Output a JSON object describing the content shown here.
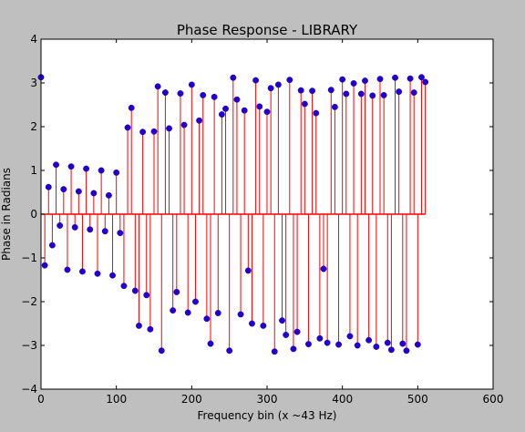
{
  "figure": {
    "background": "#bfbfbf"
  },
  "chart_data": {
    "type": "scatter",
    "style": "stem",
    "title": "Phase Response - LIBRARY",
    "xlabel": "Frequency bin (x ~43 Hz)",
    "ylabel": "Phase in Radians",
    "xlim": [
      0,
      600
    ],
    "ylim": [
      -4,
      4
    ],
    "xticks": [
      0,
      100,
      200,
      300,
      400,
      500,
      600
    ],
    "yticks": [
      -4,
      -3,
      -2,
      -1,
      0,
      1,
      2,
      3,
      4
    ],
    "grid": false,
    "legend": false,
    "colors": {
      "stem": "#ff0000",
      "marker": "#2200cc",
      "axes_bg": "#ffffff"
    },
    "series": [
      {
        "x": [
          0,
          5,
          10,
          15,
          20,
          25,
          30,
          35,
          40,
          45,
          50,
          55,
          60,
          65,
          70,
          75,
          80,
          85,
          90,
          95,
          100,
          105,
          110,
          115,
          120,
          125,
          130,
          135,
          140,
          145,
          150,
          155,
          160,
          165,
          170,
          175,
          180,
          185,
          190,
          195,
          200,
          205,
          210,
          215,
          220,
          225,
          230,
          235,
          240,
          245,
          250,
          255,
          260,
          265,
          270,
          275,
          280,
          285,
          290,
          295,
          300,
          305,
          310,
          315,
          320,
          325,
          330,
          335,
          340,
          345,
          350,
          355,
          360,
          365,
          370,
          375,
          380,
          385,
          390,
          395,
          400,
          405,
          410,
          415,
          420,
          425,
          430,
          435,
          440,
          445,
          450,
          455,
          460,
          465,
          470,
          475,
          480,
          485,
          490,
          495,
          500,
          505,
          510
        ],
        "y": [
          3.13,
          -1.17,
          0.62,
          -0.71,
          1.13,
          -0.26,
          0.57,
          -1.27,
          1.09,
          -0.3,
          0.52,
          -1.31,
          1.04,
          -0.35,
          0.48,
          -1.36,
          1.0,
          -0.39,
          0.43,
          -1.4,
          0.95,
          -0.43,
          -1.64,
          1.98,
          2.43,
          -1.75,
          -2.55,
          1.88,
          -1.85,
          -2.63,
          1.89,
          2.92,
          -3.12,
          2.78,
          1.96,
          -2.2,
          -1.78,
          2.76,
          2.04,
          -2.25,
          2.96,
          -2.0,
          2.14,
          2.72,
          -2.39,
          -2.96,
          2.68,
          -2.26,
          2.28,
          2.41,
          -3.12,
          3.12,
          2.62,
          -2.29,
          2.37,
          -1.29,
          -2.5,
          3.06,
          2.46,
          -2.55,
          2.34,
          2.88,
          -3.14,
          2.96,
          -2.43,
          -2.76,
          3.07,
          -3.08,
          -2.69,
          2.83,
          2.52,
          -2.97,
          2.82,
          2.31,
          -2.84,
          -1.25,
          -2.94,
          2.84,
          2.45,
          -2.98,
          3.08,
          2.75,
          -2.79,
          2.99,
          -3.0,
          2.75,
          3.05,
          -2.88,
          2.71,
          -3.03,
          3.09,
          2.72,
          -2.94,
          -3.1,
          3.12,
          2.8,
          -2.96,
          -3.12,
          3.1,
          2.78,
          -2.98,
          3.13,
          3.02
        ]
      }
    ]
  }
}
